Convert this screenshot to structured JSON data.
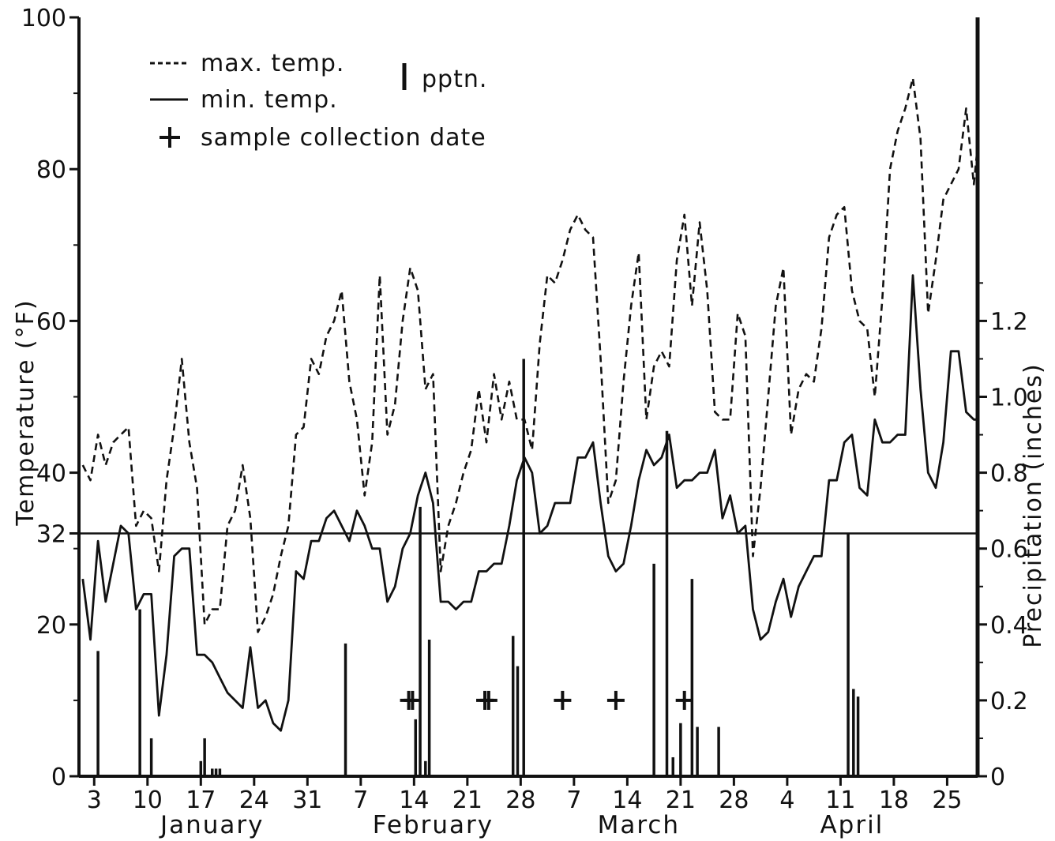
{
  "chart_data": {
    "type": "line",
    "title": "",
    "y_label_left": "Temperature (°F)",
    "y_label_right": "Precipitation (inches)",
    "y_left_ticks": [
      "0",
      "20",
      "32",
      "40",
      "60",
      "80",
      "100"
    ],
    "y_left_range": [
      0,
      100
    ],
    "y_right_ticks": [
      "0",
      "0.2",
      "0.4",
      "0.6",
      "0.8",
      "1.0",
      "1.2"
    ],
    "y_right_range": [
      0,
      2.0
    ],
    "x_range_days": [
      0,
      118
    ],
    "x_ticks": [
      {
        "label": "3",
        "day": 2
      },
      {
        "label": "10",
        "day": 9
      },
      {
        "label": "17",
        "day": 16
      },
      {
        "label": "24",
        "day": 23
      },
      {
        "label": "31",
        "day": 30
      },
      {
        "label": "7",
        "day": 37
      },
      {
        "label": "14",
        "day": 44
      },
      {
        "label": "21",
        "day": 51
      },
      {
        "label": "28",
        "day": 58
      },
      {
        "label": "7",
        "day": 65
      },
      {
        "label": "14",
        "day": 72
      },
      {
        "label": "21",
        "day": 79
      },
      {
        "label": "28",
        "day": 86
      },
      {
        "label": "4",
        "day": 93
      },
      {
        "label": "11",
        "day": 100
      },
      {
        "label": "18",
        "day": 107
      },
      {
        "label": "25",
        "day": 114
      }
    ],
    "months": [
      {
        "label": "January",
        "day": 17.5
      },
      {
        "label": "February",
        "day": 46.5
      },
      {
        "label": "March",
        "day": 73.5
      },
      {
        "label": "April",
        "day": 101.5
      }
    ],
    "legend": {
      "max": "max. temp.",
      "min": "min. temp.",
      "pptn": "pptn.",
      "sample": "sample collection date"
    },
    "freezing_line": 32,
    "series": [
      {
        "name": "max. temp.",
        "style": "dashed",
        "points": [
          [
            0.5,
            41
          ],
          [
            1.5,
            39
          ],
          [
            2.5,
            45
          ],
          [
            3.5,
            41
          ],
          [
            4.5,
            44
          ],
          [
            5.5,
            45
          ],
          [
            6.5,
            46
          ],
          [
            7.5,
            33
          ],
          [
            8.5,
            35
          ],
          [
            9.5,
            34
          ],
          [
            10.5,
            27
          ],
          [
            11.5,
            39
          ],
          [
            12.5,
            46
          ],
          [
            13.5,
            55
          ],
          [
            14.5,
            44
          ],
          [
            15.5,
            38
          ],
          [
            16.5,
            20
          ],
          [
            17.5,
            22
          ],
          [
            18.5,
            22
          ],
          [
            19.5,
            33
          ],
          [
            20.5,
            35
          ],
          [
            21.5,
            41
          ],
          [
            22.5,
            34
          ],
          [
            23.5,
            19
          ],
          [
            24.5,
            21
          ],
          [
            25.5,
            24
          ],
          [
            26.5,
            29
          ],
          [
            27.5,
            33
          ],
          [
            28.5,
            45
          ],
          [
            29.5,
            46
          ],
          [
            30.5,
            55
          ],
          [
            31.5,
            53
          ],
          [
            32.5,
            58
          ],
          [
            33.5,
            60
          ],
          [
            34.5,
            64
          ],
          [
            35.5,
            52
          ],
          [
            36.5,
            47
          ],
          [
            37.5,
            37
          ],
          [
            38.5,
            44
          ],
          [
            39.5,
            66
          ],
          [
            40.5,
            45
          ],
          [
            41.5,
            49
          ],
          [
            42.5,
            60
          ],
          [
            43.5,
            67
          ],
          [
            44.5,
            64
          ],
          [
            45.5,
            51
          ],
          [
            46.5,
            53
          ],
          [
            47.5,
            27
          ],
          [
            48.5,
            33
          ],
          [
            49.5,
            36
          ],
          [
            50.5,
            40
          ],
          [
            51.5,
            43
          ],
          [
            52.5,
            51
          ],
          [
            53.5,
            44
          ],
          [
            54.5,
            53
          ],
          [
            55.5,
            47
          ],
          [
            56.5,
            52
          ],
          [
            57.5,
            47
          ],
          [
            58.5,
            47
          ],
          [
            59.5,
            43
          ],
          [
            60.5,
            57
          ],
          [
            61.5,
            66
          ],
          [
            62.5,
            65
          ],
          [
            63.5,
            68
          ],
          [
            64.5,
            72
          ],
          [
            65.5,
            74
          ],
          [
            66.5,
            72
          ],
          [
            67.5,
            71
          ],
          [
            68.5,
            55
          ],
          [
            69.5,
            36
          ],
          [
            70.5,
            39
          ],
          [
            71.5,
            52
          ],
          [
            72.5,
            62
          ],
          [
            73.5,
            69
          ],
          [
            74.5,
            47
          ],
          [
            75.5,
            54
          ],
          [
            76.5,
            56
          ],
          [
            77.5,
            54
          ],
          [
            78.5,
            68
          ],
          [
            79.5,
            74
          ],
          [
            80.5,
            62
          ],
          [
            81.5,
            73
          ],
          [
            82.5,
            64
          ],
          [
            83.5,
            48
          ],
          [
            84.5,
            47
          ],
          [
            85.5,
            47
          ],
          [
            86.5,
            61
          ],
          [
            87.5,
            58
          ],
          [
            88.5,
            29
          ],
          [
            89.5,
            38
          ],
          [
            90.5,
            50
          ],
          [
            91.5,
            62
          ],
          [
            92.5,
            67
          ],
          [
            93.5,
            45
          ],
          [
            94.5,
            51
          ],
          [
            95.5,
            53
          ],
          [
            96.5,
            52
          ],
          [
            97.5,
            59
          ],
          [
            98.5,
            71
          ],
          [
            99.5,
            74
          ],
          [
            100.5,
            75
          ],
          [
            101.5,
            64
          ],
          [
            102.5,
            60
          ],
          [
            103.5,
            59
          ],
          [
            104.5,
            50
          ],
          [
            105.5,
            63
          ],
          [
            106.5,
            80
          ],
          [
            107.5,
            85
          ],
          [
            108.5,
            88
          ],
          [
            109.5,
            92
          ],
          [
            110.5,
            84
          ],
          [
            111.5,
            61
          ],
          [
            112.5,
            68
          ],
          [
            113.5,
            76
          ],
          [
            114.5,
            78
          ],
          [
            115.5,
            80
          ],
          [
            116.5,
            88
          ],
          [
            117.5,
            78
          ],
          [
            118,
            83
          ]
        ]
      },
      {
        "name": "min. temp.",
        "style": "solid",
        "points": [
          [
            0.5,
            26
          ],
          [
            1.5,
            18
          ],
          [
            2.5,
            31
          ],
          [
            3.5,
            23
          ],
          [
            4.5,
            28
          ],
          [
            5.5,
            33
          ],
          [
            6.5,
            32
          ],
          [
            7.5,
            22
          ],
          [
            8.5,
            24
          ],
          [
            9.5,
            24
          ],
          [
            10.5,
            8
          ],
          [
            11.5,
            16
          ],
          [
            12.5,
            29
          ],
          [
            13.5,
            30
          ],
          [
            14.5,
            30
          ],
          [
            15.5,
            16
          ],
          [
            16.5,
            16
          ],
          [
            17.5,
            15
          ],
          [
            18.5,
            13
          ],
          [
            19.5,
            11
          ],
          [
            20.5,
            10
          ],
          [
            21.5,
            9
          ],
          [
            22.5,
            17
          ],
          [
            23.5,
            9
          ],
          [
            24.5,
            10
          ],
          [
            25.5,
            7
          ],
          [
            26.5,
            6
          ],
          [
            27.5,
            10
          ],
          [
            28.5,
            27
          ],
          [
            29.5,
            26
          ],
          [
            30.5,
            31
          ],
          [
            31.5,
            31
          ],
          [
            32.5,
            34
          ],
          [
            33.5,
            35
          ],
          [
            34.5,
            33
          ],
          [
            35.5,
            31
          ],
          [
            36.5,
            35
          ],
          [
            37.5,
            33
          ],
          [
            38.5,
            30
          ],
          [
            39.5,
            30
          ],
          [
            40.5,
            23
          ],
          [
            41.5,
            25
          ],
          [
            42.5,
            30
          ],
          [
            43.5,
            32
          ],
          [
            44.5,
            37
          ],
          [
            45.5,
            40
          ],
          [
            46.5,
            36
          ],
          [
            47.5,
            23
          ],
          [
            48.5,
            23
          ],
          [
            49.5,
            22
          ],
          [
            50.5,
            23
          ],
          [
            51.5,
            23
          ],
          [
            52.5,
            27
          ],
          [
            53.5,
            27
          ],
          [
            54.5,
            28
          ],
          [
            55.5,
            28
          ],
          [
            56.5,
            33
          ],
          [
            57.5,
            39
          ],
          [
            58.5,
            42
          ],
          [
            59.5,
            40
          ],
          [
            60.5,
            32
          ],
          [
            61.5,
            33
          ],
          [
            62.5,
            36
          ],
          [
            63.5,
            36
          ],
          [
            64.5,
            36
          ],
          [
            65.5,
            42
          ],
          [
            66.5,
            42
          ],
          [
            67.5,
            44
          ],
          [
            68.5,
            36
          ],
          [
            69.5,
            29
          ],
          [
            70.5,
            27
          ],
          [
            71.5,
            28
          ],
          [
            72.5,
            33
          ],
          [
            73.5,
            39
          ],
          [
            74.5,
            43
          ],
          [
            75.5,
            41
          ],
          [
            76.5,
            42
          ],
          [
            77.5,
            45
          ],
          [
            78.5,
            38
          ],
          [
            79.5,
            39
          ],
          [
            80.5,
            39
          ],
          [
            81.5,
            40
          ],
          [
            82.5,
            40
          ],
          [
            83.5,
            43
          ],
          [
            84.5,
            34
          ],
          [
            85.5,
            37
          ],
          [
            86.5,
            32
          ],
          [
            87.5,
            33
          ],
          [
            88.5,
            22
          ],
          [
            89.5,
            18
          ],
          [
            90.5,
            19
          ],
          [
            91.5,
            23
          ],
          [
            92.5,
            26
          ],
          [
            93.5,
            21
          ],
          [
            94.5,
            25
          ],
          [
            95.5,
            27
          ],
          [
            96.5,
            29
          ],
          [
            97.5,
            29
          ],
          [
            98.5,
            39
          ],
          [
            99.5,
            39
          ],
          [
            100.5,
            44
          ],
          [
            101.5,
            45
          ],
          [
            102.5,
            38
          ],
          [
            103.5,
            37
          ],
          [
            104.5,
            47
          ],
          [
            105.5,
            44
          ],
          [
            106.5,
            44
          ],
          [
            107.5,
            45
          ],
          [
            108.5,
            45
          ],
          [
            109.5,
            66
          ],
          [
            110.5,
            51
          ],
          [
            111.5,
            40
          ],
          [
            112.5,
            38
          ],
          [
            113.5,
            44
          ],
          [
            114.5,
            56
          ],
          [
            115.5,
            56
          ],
          [
            116.5,
            48
          ],
          [
            117.5,
            47
          ],
          [
            118,
            47
          ]
        ]
      }
    ],
    "precipitation": [
      [
        2.5,
        0.33
      ],
      [
        8.0,
        0.44
      ],
      [
        9.5,
        0.1
      ],
      [
        16.0,
        0.04
      ],
      [
        16.5,
        0.1
      ],
      [
        17.5,
        0.02
      ],
      [
        18.0,
        0.02
      ],
      [
        18.5,
        0.02
      ],
      [
        35.0,
        0.35
      ],
      [
        44.2,
        0.15
      ],
      [
        44.8,
        0.71
      ],
      [
        45.5,
        0.04
      ],
      [
        46.0,
        0.36
      ],
      [
        57.0,
        0.37
      ],
      [
        57.6,
        0.29
      ],
      [
        58.4,
        1.1
      ],
      [
        75.5,
        0.56
      ],
      [
        77.2,
        0.91
      ],
      [
        78.0,
        0.05
      ],
      [
        79.0,
        0.14
      ],
      [
        80.5,
        0.52
      ],
      [
        81.2,
        0.13
      ],
      [
        84.0,
        0.13
      ],
      [
        101.0,
        0.64
      ],
      [
        101.7,
        0.23
      ],
      [
        102.3,
        0.21
      ]
    ],
    "sample_dates": [
      43.3,
      43.8,
      53.3,
      53.8,
      63.5,
      70.5,
      79.5
    ]
  }
}
